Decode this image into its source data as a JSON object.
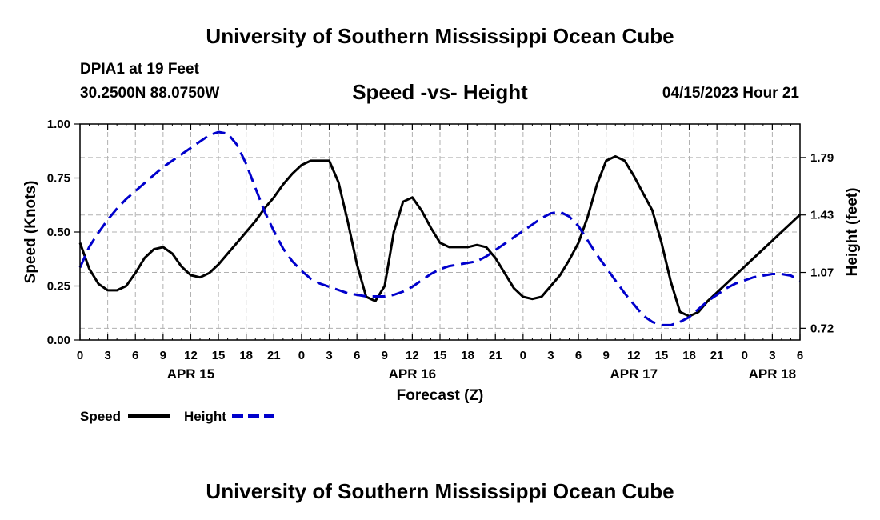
{
  "page": {
    "title": "University of Southern Mississippi Ocean Cube",
    "footer_title": "University of Southern Mississippi Ocean Cube",
    "station": "DPIA1 at 19 Feet",
    "coordinates": "30.2500N  88.0750W",
    "subtitle": "Speed -vs- Height",
    "datetime": "04/15/2023 Hour 21"
  },
  "chart_data": {
    "type": "line",
    "title": "Speed -vs- Height",
    "xlabel": "Forecast (Z)",
    "ylabel": "Speed (Knots)",
    "y2label": "Height (feet)",
    "xlim": [
      0,
      78
    ],
    "ylim": [
      0,
      1
    ],
    "y2lim": [
      0.6466,
      2.0
    ],
    "x_ticks": [
      0,
      3,
      6,
      9,
      12,
      15,
      18,
      21,
      24,
      27,
      30,
      33,
      36,
      39,
      42,
      45,
      48,
      51,
      54,
      57,
      60,
      63,
      66,
      69,
      72,
      75,
      78
    ],
    "x_tick_labels": [
      "0",
      "3",
      "6",
      "9",
      "12",
      "15",
      "18",
      "21",
      "0",
      "3",
      "6",
      "9",
      "12",
      "15",
      "18",
      "21",
      "0",
      "3",
      "6",
      "9",
      "12",
      "15",
      "18",
      "21",
      "0",
      "3",
      "6"
    ],
    "day_labels": [
      {
        "x": 12,
        "label": "APR 15"
      },
      {
        "x": 36,
        "label": "APR 16"
      },
      {
        "x": 60,
        "label": "APR 17"
      },
      {
        "x": 75,
        "label": "APR 18"
      }
    ],
    "y_ticks": [
      0,
      0.25,
      0.5,
      0.75,
      1.0
    ],
    "y_tick_labels": [
      "0.00",
      "0.25",
      "0.50",
      "0.75",
      "1.00"
    ],
    "y2_ticks": [
      0.72,
      1.07,
      1.43,
      1.79
    ],
    "y2_tick_labels": [
      "0.72",
      "1.07",
      "1.43",
      "1.79"
    ],
    "grid": true,
    "legend_position": "bottom-left",
    "series": [
      {
        "name": "Speed",
        "axis": "left",
        "color": "#000000",
        "dash": "solid",
        "x": [
          0,
          1,
          2,
          3,
          4,
          5,
          6,
          7,
          8,
          9,
          10,
          11,
          12,
          13,
          14,
          15,
          16,
          17,
          18,
          19,
          20,
          21,
          22,
          23,
          24,
          25,
          26,
          27,
          28,
          29,
          30,
          31,
          32,
          33,
          34,
          35,
          36,
          37,
          38,
          39,
          40,
          41,
          42,
          43,
          44,
          45,
          46,
          47,
          48,
          49,
          50,
          51,
          52,
          53,
          54,
          55,
          56,
          57,
          58,
          59,
          60,
          61,
          62,
          63,
          64,
          65,
          66,
          67,
          68,
          69,
          70,
          71,
          72,
          73,
          74,
          75,
          76,
          77,
          78
        ],
        "values": [
          0.45,
          0.33,
          0.26,
          0.23,
          0.23,
          0.25,
          0.31,
          0.38,
          0.42,
          0.43,
          0.4,
          0.34,
          0.3,
          0.29,
          0.31,
          0.35,
          0.4,
          0.45,
          0.5,
          0.55,
          0.61,
          0.66,
          0.72,
          0.77,
          0.81,
          0.83,
          0.83,
          0.83,
          0.73,
          0.55,
          0.35,
          0.2,
          0.18,
          0.25,
          0.5,
          0.64,
          0.66,
          0.6,
          0.52,
          0.45,
          0.43,
          0.43,
          0.43,
          0.44,
          0.43,
          0.38,
          0.31,
          0.24,
          0.2,
          0.19,
          0.2,
          0.25,
          0.3,
          0.37,
          0.45,
          0.57,
          0.72,
          0.83,
          0.85,
          0.83,
          0.76,
          0.68,
          0.6,
          0.45,
          0.27,
          0.13,
          0.11,
          0.13,
          0.18,
          0.22,
          0.26,
          0.3,
          0.34,
          0.38,
          0.42,
          0.46,
          0.5,
          0.54,
          0.58
        ]
      },
      {
        "name": "Height",
        "axis": "right",
        "color": "#0000cc",
        "dash": "dashed",
        "x": [
          0,
          1,
          2,
          3,
          4,
          5,
          6,
          7,
          8,
          9,
          10,
          11,
          12,
          13,
          14,
          15,
          16,
          17,
          18,
          19,
          20,
          21,
          22,
          23,
          24,
          25,
          26,
          27,
          28,
          29,
          30,
          31,
          32,
          33,
          34,
          35,
          36,
          37,
          38,
          39,
          40,
          41,
          42,
          43,
          44,
          45,
          46,
          47,
          48,
          49,
          50,
          51,
          52,
          53,
          54,
          55,
          56,
          57,
          58,
          59,
          60,
          61,
          62,
          63,
          64,
          65,
          66,
          67,
          68,
          69,
          70,
          71,
          72,
          73,
          74,
          75,
          76,
          77,
          78
        ],
        "values": [
          1.1,
          1.23,
          1.32,
          1.4,
          1.47,
          1.53,
          1.58,
          1.63,
          1.68,
          1.73,
          1.77,
          1.81,
          1.85,
          1.89,
          1.93,
          1.95,
          1.94,
          1.87,
          1.75,
          1.6,
          1.45,
          1.33,
          1.22,
          1.14,
          1.08,
          1.03,
          1.0,
          0.98,
          0.96,
          0.94,
          0.93,
          0.92,
          0.92,
          0.92,
          0.93,
          0.95,
          0.98,
          1.02,
          1.06,
          1.09,
          1.11,
          1.12,
          1.13,
          1.14,
          1.17,
          1.21,
          1.25,
          1.29,
          1.33,
          1.37,
          1.41,
          1.44,
          1.45,
          1.42,
          1.36,
          1.27,
          1.18,
          1.1,
          1.02,
          0.94,
          0.87,
          0.8,
          0.76,
          0.74,
          0.74,
          0.76,
          0.79,
          0.84,
          0.89,
          0.93,
          0.97,
          1.0,
          1.02,
          1.04,
          1.05,
          1.06,
          1.06,
          1.05,
          1.02
        ]
      }
    ]
  }
}
